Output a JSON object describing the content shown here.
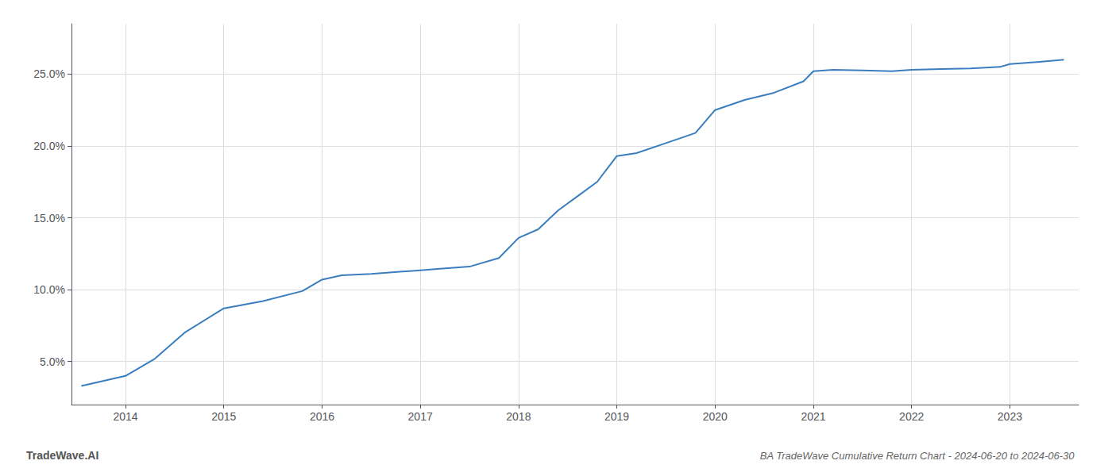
{
  "chart_data": {
    "type": "line",
    "title": "BA TradeWave Cumulative Return Chart - 2024-06-20 to 2024-06-30",
    "annotations": [
      "TradeWave.AI"
    ],
    "x": [
      2013.55,
      2014.0,
      2014.3,
      2014.6,
      2015.0,
      2015.4,
      2015.8,
      2016.0,
      2016.2,
      2016.5,
      2017.0,
      2017.2,
      2017.5,
      2017.8,
      2018.0,
      2018.2,
      2018.4,
      2018.6,
      2018.8,
      2019.0,
      2019.2,
      2019.5,
      2019.8,
      2020.0,
      2020.3,
      2020.6,
      2020.9,
      2021.0,
      2021.2,
      2021.5,
      2021.8,
      2022.0,
      2022.3,
      2022.6,
      2022.9,
      2023.0,
      2023.3,
      2023.55
    ],
    "values": [
      3.3,
      4.0,
      5.2,
      7.0,
      8.7,
      9.2,
      9.9,
      10.7,
      11.0,
      11.1,
      11.35,
      11.45,
      11.6,
      12.2,
      13.6,
      14.2,
      15.5,
      16.5,
      17.5,
      19.3,
      19.5,
      20.2,
      20.9,
      22.5,
      23.2,
      23.7,
      24.5,
      25.2,
      25.3,
      25.25,
      25.2,
      25.3,
      25.35,
      25.4,
      25.5,
      25.7,
      25.85,
      26.0
    ],
    "color": "#3a7ebf",
    "xlim": [
      2013.45,
      2023.7
    ],
    "xticks": [
      2014,
      2015,
      2016,
      2017,
      2018,
      2019,
      2020,
      2021,
      2022,
      2023
    ],
    "ylim": [
      2.0,
      28.5
    ],
    "yticks": [
      {
        "value": 5.0,
        "label": "5.0%"
      },
      {
        "value": 10.0,
        "label": "10.0%"
      },
      {
        "value": 15.0,
        "label": "15.0%"
      },
      {
        "value": 20.0,
        "label": "20.0%"
      },
      {
        "value": 25.0,
        "label": "25.0%"
      }
    ],
    "grid": true
  }
}
